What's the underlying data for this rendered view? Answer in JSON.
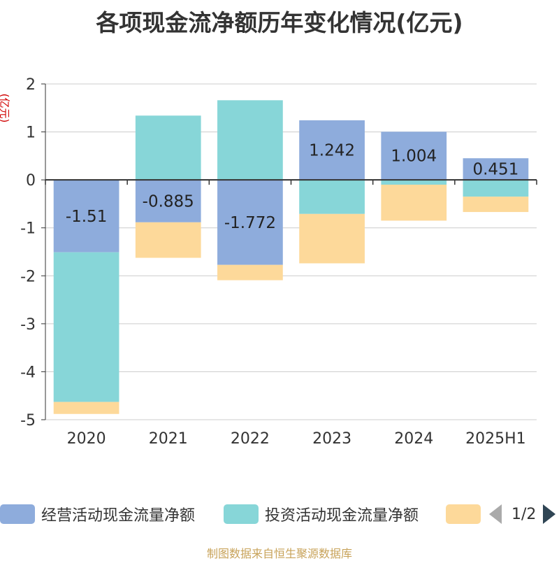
{
  "title": "各项现金流净额历年变化情况(亿元)",
  "y_unit": "(亿元)",
  "source": "制图数据来自恒生聚源数据库",
  "legend": {
    "items": [
      {
        "label": "经营活动现金流量净额",
        "color": "#8eacdc"
      },
      {
        "label": "投资活动现金流量净额",
        "color": "#87d6d8"
      },
      {
        "label": "",
        "color": "#fdd99a"
      }
    ],
    "pager": "1/2"
  },
  "chart_data": {
    "type": "bar",
    "stacked": true,
    "categories": [
      "2020",
      "2021",
      "2022",
      "2023",
      "2024",
      "2025H1"
    ],
    "ylim": [
      -5,
      2
    ],
    "yticks": [
      2,
      1,
      0,
      -1,
      -2,
      -3,
      -4,
      -5
    ],
    "grid": true,
    "legend_position": "bottom",
    "series": [
      {
        "name": "经营活动现金流量净额",
        "color": "#8eacdc",
        "values": [
          -1.51,
          -0.885,
          -1.772,
          1.242,
          1.004,
          0.451
        ],
        "labels": [
          "-1.51",
          "-0.885",
          "-1.772",
          "1.242",
          "1.004",
          "0.451"
        ]
      },
      {
        "name": "投资活动现金流量净额",
        "color": "#87d6d8",
        "values": [
          -3.12,
          1.34,
          1.66,
          -0.71,
          -0.1,
          -0.35
        ]
      },
      {
        "color": "#fdd99a",
        "values": [
          -0.25,
          -0.74,
          -0.32,
          -1.03,
          -0.75,
          -0.32
        ]
      }
    ]
  }
}
